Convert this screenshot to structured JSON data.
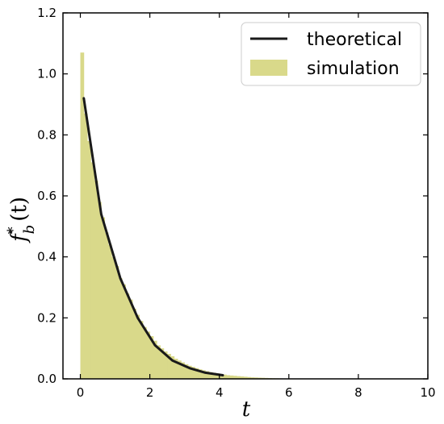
{
  "chart_data": {
    "type": "bar",
    "xlabel": "t",
    "ylabel_main": "f",
    "ylabel_sup": "*",
    "ylabel_sub": "b",
    "ylabel_tail": "(t)",
    "xlim": [
      -0.5,
      10
    ],
    "ylim": [
      0,
      1.2
    ],
    "x_ticks": [
      0,
      2,
      4,
      6,
      8,
      10
    ],
    "x_tick_labels": [
      "0",
      "2",
      "4",
      "6",
      "8",
      "10"
    ],
    "y_ticks": [
      0,
      0.2,
      0.4,
      0.6,
      0.8,
      1.0,
      1.2
    ],
    "y_tick_labels": [
      "0.0",
      "0.2",
      "0.4",
      "0.6",
      "0.8",
      "1.0",
      "1.2"
    ],
    "grid": false,
    "legend_position": "top-right",
    "series": [
      {
        "name": "theoretical",
        "kind": "line",
        "color": "#1a1a1a",
        "x": [
          0.1,
          0.6,
          1.15,
          1.65,
          2.15,
          2.65,
          3.15,
          3.6,
          4.1
        ],
        "y": [
          0.92,
          0.54,
          0.33,
          0.2,
          0.11,
          0.06,
          0.035,
          0.02,
          0.012
        ]
      },
      {
        "name": "simulation",
        "kind": "histogram",
        "color": "#d9d98a",
        "bin_width": 0.1,
        "x": [
          0.05,
          0.15,
          0.25,
          0.35,
          0.45,
          0.55,
          0.65,
          0.75,
          0.85,
          0.95,
          1.05,
          1.15,
          1.25,
          1.35,
          1.45,
          1.55,
          1.65,
          1.75,
          1.85,
          1.95,
          2.05,
          2.15,
          2.25,
          2.35,
          2.45,
          2.55,
          2.65,
          2.75,
          2.85,
          2.95,
          3.05,
          3.15,
          3.25,
          3.35,
          3.45,
          3.55,
          3.65,
          3.75,
          3.85,
          3.95,
          4.05,
          4.15,
          4.25,
          4.35,
          4.45,
          4.55,
          4.65,
          4.75,
          4.85,
          4.95,
          5.05,
          5.15,
          5.25,
          5.35,
          5.45,
          5.55,
          5.65,
          5.75,
          5.85,
          5.95
        ],
        "y": [
          1.07,
          0.87,
          0.78,
          0.71,
          0.65,
          0.58,
          0.53,
          0.48,
          0.44,
          0.4,
          0.37,
          0.33,
          0.31,
          0.28,
          0.26,
          0.23,
          0.21,
          0.19,
          0.17,
          0.155,
          0.14,
          0.125,
          0.11,
          0.1,
          0.09,
          0.082,
          0.074,
          0.066,
          0.06,
          0.054,
          0.048,
          0.043,
          0.039,
          0.035,
          0.031,
          0.028,
          0.025,
          0.022,
          0.02,
          0.018,
          0.016,
          0.014,
          0.012,
          0.011,
          0.01,
          0.009,
          0.008,
          0.007,
          0.006,
          0.005,
          0.0045,
          0.004,
          0.0035,
          0.003,
          0.0025,
          0.002,
          0.0018,
          0.0015,
          0.0012,
          0.001
        ]
      }
    ]
  }
}
